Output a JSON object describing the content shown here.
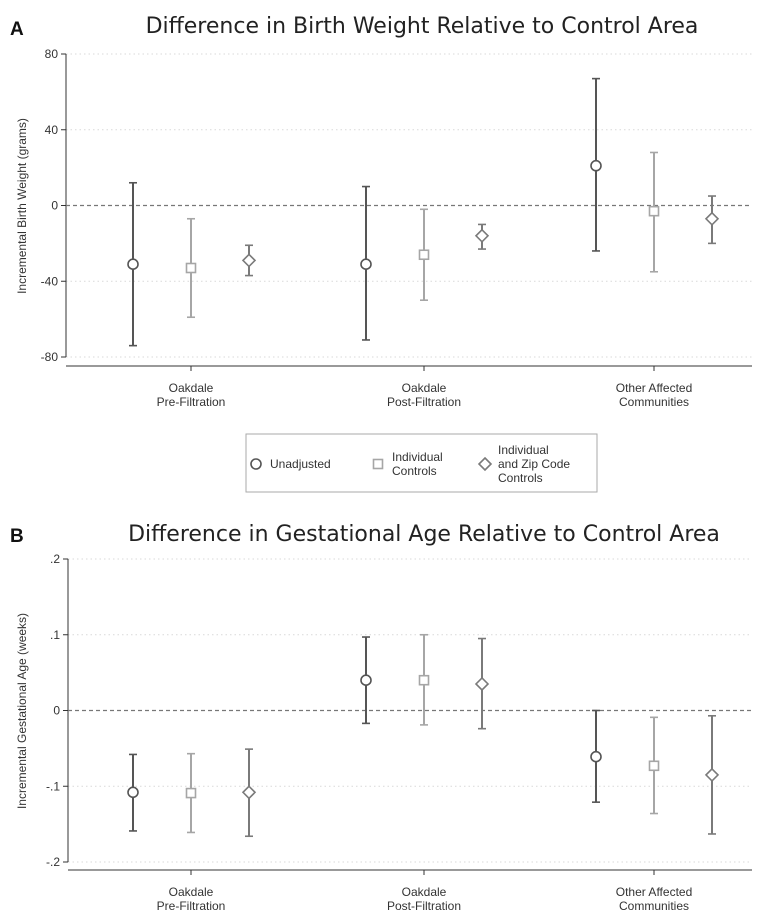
{
  "colors": {
    "background": "#ffffff",
    "unadjusted": "#555555",
    "individual_controls": "#a6a6a6",
    "individual_zip_controls": "#7a7a7a",
    "grid": "#d9d9d9",
    "zero_line": "#777777"
  },
  "legend": {
    "items": [
      {
        "label_lines": [
          "Unadjusted"
        ],
        "marker": "circle"
      },
      {
        "label_lines": [
          "Individual",
          "Controls"
        ],
        "marker": "square"
      },
      {
        "label_lines": [
          "Individual",
          "and Zip Code",
          "Controls"
        ],
        "marker": "diamond"
      }
    ]
  },
  "chart_data": [
    {
      "panel": "A",
      "type": "scatter",
      "title": "Difference in Birth Weight Relative to Control Area",
      "ylabel": "Incremental Birth Weight (grams)",
      "ylim": [
        -80,
        80
      ],
      "yticks": [
        80,
        40,
        0,
        -40,
        -80
      ],
      "ytick_labels": [
        "80",
        "40",
        "0",
        "-40",
        "-80"
      ],
      "grid": true,
      "reference_line": 0,
      "legend_position": "bottom",
      "categories": [
        [
          "Oakdale",
          "Pre-Filtration"
        ],
        [
          "Oakdale",
          "Post-Filtration"
        ],
        [
          "Other Affected",
          "Communities"
        ]
      ],
      "series": [
        {
          "name": "Unadjusted",
          "marker": "circle",
          "points": [
            {
              "estimate": -31,
              "lower": -74,
              "upper": 12
            },
            {
              "estimate": -31,
              "lower": -71,
              "upper": 10
            },
            {
              "estimate": 21,
              "lower": -24,
              "upper": 67
            }
          ]
        },
        {
          "name": "Individual Controls",
          "marker": "square",
          "points": [
            {
              "estimate": -33,
              "lower": -59,
              "upper": -7
            },
            {
              "estimate": -26,
              "lower": -50,
              "upper": -2
            },
            {
              "estimate": -3,
              "lower": -35,
              "upper": 28
            }
          ]
        },
        {
          "name": "Individual and Zip Code Controls",
          "marker": "diamond",
          "points": [
            {
              "estimate": -29,
              "lower": -37,
              "upper": -21
            },
            {
              "estimate": -16,
              "lower": -23,
              "upper": -10
            },
            {
              "estimate": -7,
              "lower": -20,
              "upper": 5
            }
          ]
        }
      ]
    },
    {
      "panel": "B",
      "type": "scatter",
      "title": "Difference in Gestational Age Relative to Control Area",
      "ylabel": "Incremental Gestational Age (weeks)",
      "ylim": [
        -0.2,
        0.2
      ],
      "yticks": [
        0.2,
        0.1,
        0,
        -0.1,
        -0.2
      ],
      "ytick_labels": [
        ".2",
        ".1",
        "0",
        "-.1",
        "-.2"
      ],
      "grid": true,
      "reference_line": 0,
      "categories": [
        [
          "Oakdale",
          "Pre-Filtration"
        ],
        [
          "Oakdale",
          "Post-Filtration"
        ],
        [
          "Other Affected",
          "Communities"
        ]
      ],
      "series": [
        {
          "name": "Unadjusted",
          "marker": "circle",
          "points": [
            {
              "estimate": -0.108,
              "lower": -0.159,
              "upper": -0.058
            },
            {
              "estimate": 0.04,
              "lower": -0.017,
              "upper": 0.097
            },
            {
              "estimate": -0.061,
              "lower": -0.121,
              "upper": 0.0
            }
          ]
        },
        {
          "name": "Individual Controls",
          "marker": "square",
          "points": [
            {
              "estimate": -0.109,
              "lower": -0.161,
              "upper": -0.057
            },
            {
              "estimate": 0.04,
              "lower": -0.019,
              "upper": 0.1
            },
            {
              "estimate": -0.073,
              "lower": -0.136,
              "upper": -0.009
            }
          ]
        },
        {
          "name": "Individual and Zip Code Controls",
          "marker": "diamond",
          "points": [
            {
              "estimate": -0.108,
              "lower": -0.166,
              "upper": -0.051
            },
            {
              "estimate": 0.035,
              "lower": -0.024,
              "upper": 0.095
            },
            {
              "estimate": -0.085,
              "lower": -0.163,
              "upper": -0.007
            }
          ]
        }
      ]
    }
  ]
}
